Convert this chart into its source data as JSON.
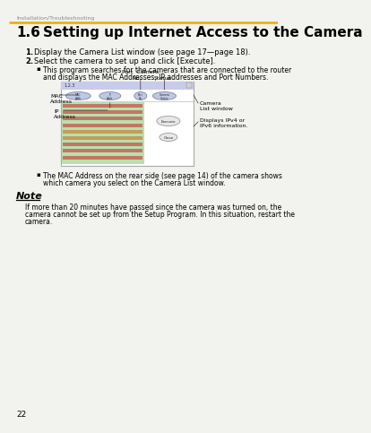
{
  "bg_color": "#f2f2ee",
  "header_text": "Installation/Troubleshooting",
  "header_color": "#888888",
  "line_color": "#f0a800",
  "title_num": "1.6",
  "title_text": "Setting up Internet Access to the Camera",
  "title_color": "#000000",
  "step1_num": "1.",
  "step1": "Display the Camera List window (see page 17—page 18).",
  "step2_num": "2.",
  "step2": "Select the camera to set up and click [Execute].",
  "bullet1_line1": "This program searches for the cameras that are connected to the router",
  "bullet1_line2": "and displays the MAC Addresses, IP addresses and Port Numbers.",
  "bullet2_line1": "The MAC Address on the rear side (see page 14) of the camera shows",
  "bullet2_line2": "which camera you select on the Camera List window.",
  "note_title": "Note",
  "note_line1": "If more than 20 minutes have passed since the camera was turned on, the",
  "note_line2": "camera cannot be set up from the Setup Program. In this situation, restart the",
  "note_line3": "camera.",
  "page_num": "22",
  "ss_bg": "#ffffff",
  "ss_border": "#aaaaaa",
  "ss_titlebar_bg": "#c8cce8",
  "ss_titlebar_text": "#333333",
  "ss_green_bg": "#b8e0b0",
  "ss_red_line": "#cc2222",
  "ss_orange_line": "#cc6611",
  "ss_btn_bg": "#e8e8e8",
  "ss_btn_border": "#999999",
  "ss_ellipse_fill": "#c0c8e0",
  "ss_ellipse_border": "#7070a0",
  "label_mac": "MAC\nAddress",
  "label_ip": "IP\nAddress",
  "label_port": "Port  Camera\nNo.  Status",
  "label_camlist": "Camera\nList window",
  "label_ipv4": "Displays IPv4 or\nIPv6 information.",
  "arrow_color": "#333333"
}
